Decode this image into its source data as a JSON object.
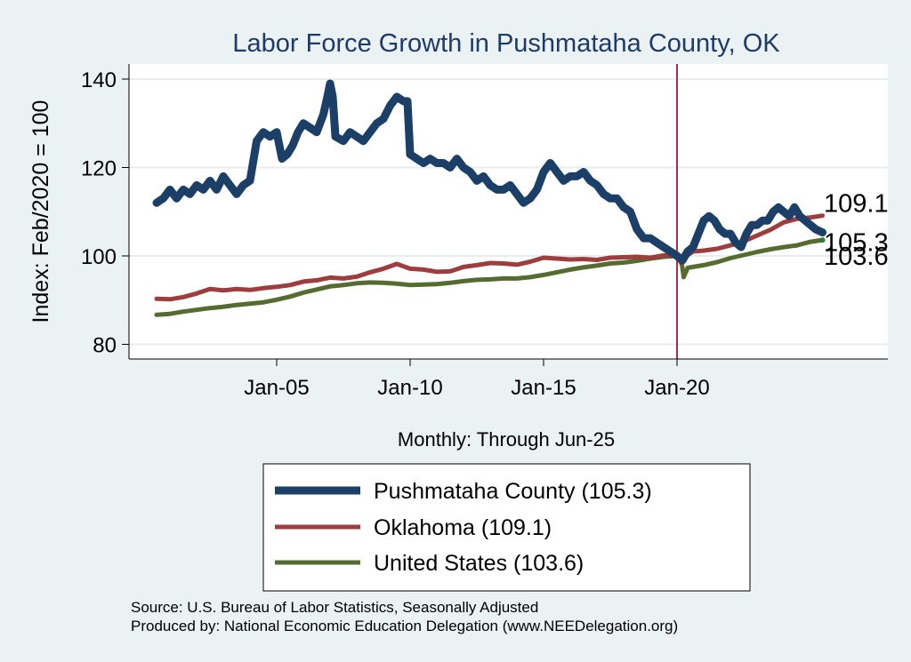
{
  "chart_data": {
    "type": "line",
    "title": "Labor Force Growth in Pushmataha  County, OK",
    "ylabel": "Index: Feb/2020 = 100",
    "xlabel": "Monthly: Through Jun-25",
    "ylim": [
      78,
      144
    ],
    "xlim": [
      2000.0,
      2028.0
    ],
    "yticks": [
      80,
      100,
      120,
      140
    ],
    "xticks": [
      {
        "label": "Jan-05",
        "value": 2005.0
      },
      {
        "label": "Jan-10",
        "value": 2010.0
      },
      {
        "label": "Jan-15",
        "value": 2015.0
      },
      {
        "label": "Jan-20",
        "value": 2020.0
      }
    ],
    "reference_line": {
      "x": 2020.0,
      "color": "#b5294a"
    },
    "grid": true,
    "series": [
      {
        "name": "Pushmataha  County",
        "legend": "Pushmataha  County (105.3)",
        "color": "#1b3f66",
        "width": 9,
        "end_label": "105.3",
        "points": [
          [
            2000.5,
            112
          ],
          [
            2000.75,
            113
          ],
          [
            2001.0,
            115
          ],
          [
            2001.25,
            113
          ],
          [
            2001.5,
            115
          ],
          [
            2001.75,
            114
          ],
          [
            2002.0,
            116
          ],
          [
            2002.25,
            115
          ],
          [
            2002.5,
            117
          ],
          [
            2002.75,
            115
          ],
          [
            2003.0,
            118
          ],
          [
            2003.25,
            116
          ],
          [
            2003.5,
            114
          ],
          [
            2003.75,
            116
          ],
          [
            2004.0,
            117
          ],
          [
            2004.25,
            126
          ],
          [
            2004.5,
            128
          ],
          [
            2004.75,
            127
          ],
          [
            2005.0,
            128
          ],
          [
            2005.2,
            122
          ],
          [
            2005.4,
            123
          ],
          [
            2005.6,
            125
          ],
          [
            2005.8,
            128
          ],
          [
            2006.0,
            130
          ],
          [
            2006.25,
            129
          ],
          [
            2006.5,
            128
          ],
          [
            2006.75,
            132
          ],
          [
            2006.9,
            136
          ],
          [
            2007.0,
            139
          ],
          [
            2007.1,
            136
          ],
          [
            2007.2,
            127
          ],
          [
            2007.5,
            126
          ],
          [
            2007.75,
            128
          ],
          [
            2008.0,
            127
          ],
          [
            2008.25,
            126
          ],
          [
            2008.5,
            128
          ],
          [
            2008.75,
            130
          ],
          [
            2009.0,
            131
          ],
          [
            2009.25,
            134
          ],
          [
            2009.5,
            136
          ],
          [
            2009.75,
            135
          ],
          [
            2009.9,
            135
          ],
          [
            2010.0,
            123
          ],
          [
            2010.25,
            122
          ],
          [
            2010.5,
            121
          ],
          [
            2010.75,
            122
          ],
          [
            2011.0,
            121
          ],
          [
            2011.25,
            121
          ],
          [
            2011.5,
            120
          ],
          [
            2011.75,
            122
          ],
          [
            2012.0,
            120
          ],
          [
            2012.25,
            119
          ],
          [
            2012.5,
            117
          ],
          [
            2012.75,
            118
          ],
          [
            2013.0,
            116
          ],
          [
            2013.25,
            115
          ],
          [
            2013.5,
            115
          ],
          [
            2013.75,
            116
          ],
          [
            2014.0,
            114
          ],
          [
            2014.25,
            112
          ],
          [
            2014.5,
            113
          ],
          [
            2014.75,
            115
          ],
          [
            2015.0,
            119
          ],
          [
            2015.25,
            121
          ],
          [
            2015.5,
            119
          ],
          [
            2015.75,
            117
          ],
          [
            2016.0,
            118
          ],
          [
            2016.25,
            118
          ],
          [
            2016.5,
            119
          ],
          [
            2016.75,
            117
          ],
          [
            2017.0,
            116
          ],
          [
            2017.25,
            114
          ],
          [
            2017.5,
            113
          ],
          [
            2017.75,
            113
          ],
          [
            2018.0,
            111
          ],
          [
            2018.25,
            110
          ],
          [
            2018.5,
            106
          ],
          [
            2018.75,
            104
          ],
          [
            2019.0,
            104
          ],
          [
            2019.25,
            103
          ],
          [
            2019.5,
            102
          ],
          [
            2019.75,
            101
          ],
          [
            2020.0,
            100
          ],
          [
            2020.2,
            99
          ],
          [
            2020.4,
            101
          ],
          [
            2020.6,
            102
          ],
          [
            2020.8,
            105
          ],
          [
            2021.0,
            108
          ],
          [
            2021.2,
            109
          ],
          [
            2021.4,
            108
          ],
          [
            2021.6,
            106
          ],
          [
            2021.8,
            105
          ],
          [
            2022.0,
            105
          ],
          [
            2022.2,
            103
          ],
          [
            2022.4,
            102
          ],
          [
            2022.6,
            105
          ],
          [
            2022.8,
            107
          ],
          [
            2023.0,
            107
          ],
          [
            2023.2,
            108
          ],
          [
            2023.4,
            108
          ],
          [
            2023.6,
            110
          ],
          [
            2023.8,
            111
          ],
          [
            2024.0,
            110
          ],
          [
            2024.2,
            109
          ],
          [
            2024.4,
            111
          ],
          [
            2024.6,
            109
          ],
          [
            2024.8,
            108
          ],
          [
            2025.0,
            107
          ],
          [
            2025.2,
            106
          ],
          [
            2025.45,
            105.3
          ]
        ]
      },
      {
        "name": "Oklahoma",
        "legend": "Oklahoma (109.1)",
        "color": "#9e3d3d",
        "width": 5,
        "end_label": "109.1",
        "points": [
          [
            2000.5,
            90.3
          ],
          [
            2001.0,
            90.2
          ],
          [
            2001.5,
            90.7
          ],
          [
            2002.0,
            91.5
          ],
          [
            2002.5,
            92.5
          ],
          [
            2003.0,
            92.2
          ],
          [
            2003.5,
            92.5
          ],
          [
            2004.0,
            92.3
          ],
          [
            2004.5,
            92.7
          ],
          [
            2005.0,
            93.0
          ],
          [
            2005.5,
            93.4
          ],
          [
            2006.0,
            94.2
          ],
          [
            2006.5,
            94.5
          ],
          [
            2007.0,
            95.1
          ],
          [
            2007.5,
            94.9
          ],
          [
            2008.0,
            95.3
          ],
          [
            2008.5,
            96.3
          ],
          [
            2009.0,
            97.1
          ],
          [
            2009.5,
            98.2
          ],
          [
            2010.0,
            97.1
          ],
          [
            2010.5,
            96.9
          ],
          [
            2011.0,
            96.4
          ],
          [
            2011.5,
            96.5
          ],
          [
            2012.0,
            97.5
          ],
          [
            2012.5,
            97.9
          ],
          [
            2013.0,
            98.4
          ],
          [
            2013.5,
            98.3
          ],
          [
            2014.0,
            98.0
          ],
          [
            2014.5,
            98.7
          ],
          [
            2015.0,
            99.6
          ],
          [
            2015.5,
            99.4
          ],
          [
            2016.0,
            99.2
          ],
          [
            2016.5,
            99.3
          ],
          [
            2017.0,
            99.1
          ],
          [
            2017.5,
            99.6
          ],
          [
            2018.0,
            99.7
          ],
          [
            2018.5,
            99.8
          ],
          [
            2019.0,
            99.6
          ],
          [
            2019.5,
            100.1
          ],
          [
            2020.0,
            100.1
          ],
          [
            2020.15,
            98.4
          ],
          [
            2020.3,
            99.8
          ],
          [
            2020.6,
            101.0
          ],
          [
            2021.0,
            101.2
          ],
          [
            2021.5,
            101.6
          ],
          [
            2022.0,
            102.4
          ],
          [
            2022.5,
            103.3
          ],
          [
            2023.0,
            104.6
          ],
          [
            2023.5,
            105.9
          ],
          [
            2024.0,
            107.6
          ],
          [
            2024.5,
            108.4
          ],
          [
            2025.0,
            108.7
          ],
          [
            2025.45,
            109.1
          ]
        ]
      },
      {
        "name": "United States",
        "legend": "United States (103.6)",
        "color": "#556b2f",
        "width": 5,
        "end_label": "103.6",
        "points": [
          [
            2000.5,
            86.7
          ],
          [
            2001.0,
            86.9
          ],
          [
            2001.5,
            87.4
          ],
          [
            2002.0,
            87.8
          ],
          [
            2002.5,
            88.2
          ],
          [
            2003.0,
            88.5
          ],
          [
            2003.5,
            88.9
          ],
          [
            2004.0,
            89.2
          ],
          [
            2004.5,
            89.5
          ],
          [
            2005.0,
            90.1
          ],
          [
            2005.5,
            90.8
          ],
          [
            2006.0,
            91.7
          ],
          [
            2006.5,
            92.4
          ],
          [
            2007.0,
            93.1
          ],
          [
            2007.5,
            93.4
          ],
          [
            2008.0,
            93.8
          ],
          [
            2008.5,
            94.0
          ],
          [
            2009.0,
            93.9
          ],
          [
            2009.5,
            93.7
          ],
          [
            2010.0,
            93.4
          ],
          [
            2010.5,
            93.5
          ],
          [
            2011.0,
            93.6
          ],
          [
            2011.5,
            93.9
          ],
          [
            2012.0,
            94.3
          ],
          [
            2012.5,
            94.6
          ],
          [
            2013.0,
            94.7
          ],
          [
            2013.5,
            94.9
          ],
          [
            2014.0,
            94.9
          ],
          [
            2014.5,
            95.2
          ],
          [
            2015.0,
            95.7
          ],
          [
            2015.5,
            96.3
          ],
          [
            2016.0,
            96.9
          ],
          [
            2016.5,
            97.4
          ],
          [
            2017.0,
            97.8
          ],
          [
            2017.5,
            98.3
          ],
          [
            2018.0,
            98.5
          ],
          [
            2018.5,
            98.9
          ],
          [
            2019.0,
            99.4
          ],
          [
            2019.5,
            99.8
          ],
          [
            2020.0,
            100.0
          ],
          [
            2020.15,
            99.5
          ],
          [
            2020.25,
            95.2
          ],
          [
            2020.4,
            97.3
          ],
          [
            2020.7,
            97.6
          ],
          [
            2021.0,
            97.9
          ],
          [
            2021.5,
            98.6
          ],
          [
            2022.0,
            99.5
          ],
          [
            2022.5,
            100.2
          ],
          [
            2023.0,
            100.9
          ],
          [
            2023.5,
            101.5
          ],
          [
            2024.0,
            102.0
          ],
          [
            2024.5,
            102.4
          ],
          [
            2025.0,
            103.2
          ],
          [
            2025.45,
            103.6
          ]
        ]
      }
    ]
  },
  "footer": {
    "source": "Source: U.S. Bureau of Labor Statistics, Seasonally Adjusted",
    "produced_by": "Produced by: National Economic Education Delegation (www.NEEDelegation.org)"
  }
}
